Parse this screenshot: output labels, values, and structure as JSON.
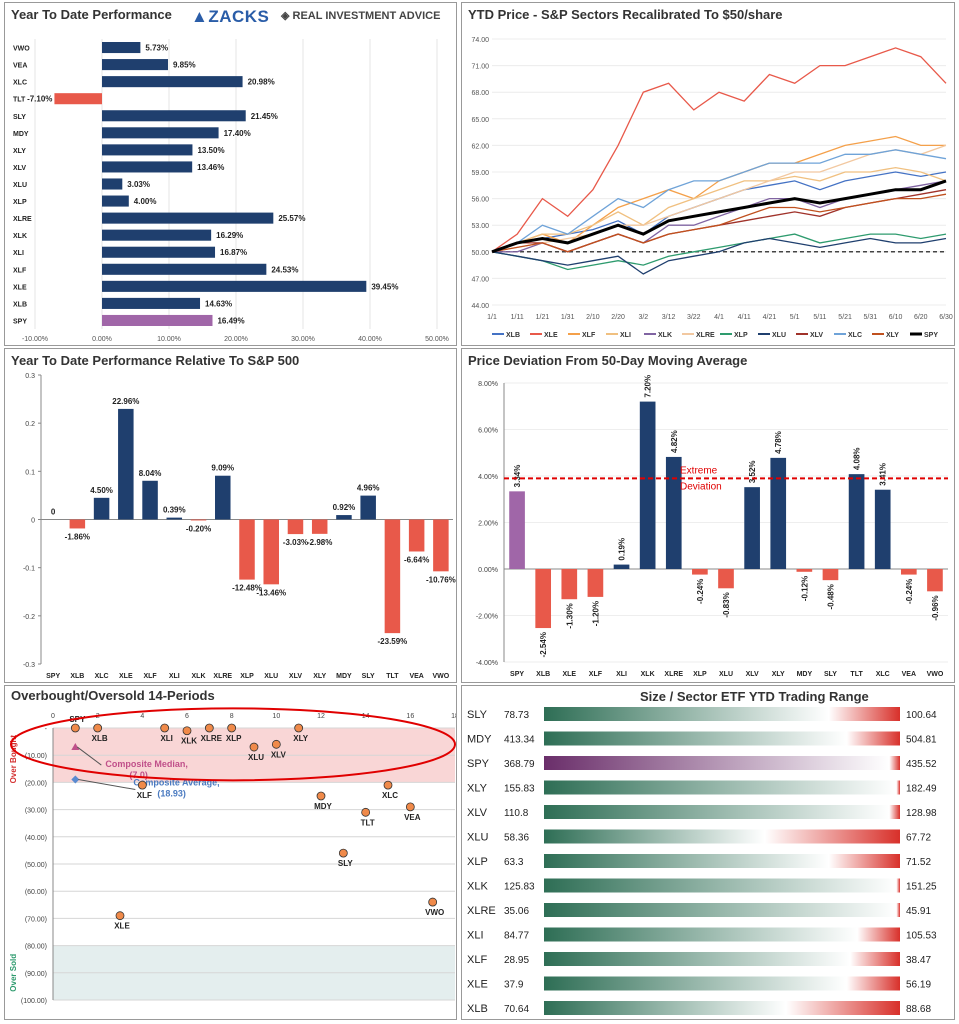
{
  "chart_data": [
    {
      "type": "bar",
      "orientation": "horizontal",
      "title": "Year To Date Performance",
      "categories": [
        "VWO",
        "VEA",
        "XLC",
        "TLT",
        "SLY",
        "MDY",
        "XLY",
        "XLV",
        "XLU",
        "XLP",
        "XLRE",
        "XLK",
        "XLI",
        "XLF",
        "XLE",
        "XLB",
        "SPY"
      ],
      "values": [
        5.73,
        9.85,
        20.98,
        -7.1,
        21.45,
        17.4,
        13.5,
        13.46,
        3.03,
        4.0,
        25.57,
        16.29,
        16.87,
        24.53,
        39.45,
        14.63,
        16.49
      ],
      "labels": [
        "5.73%",
        "9.85%",
        "20.98%",
        "-7.10%",
        "21.45%",
        "17.40%",
        "13.50%",
        "13.46%",
        "3.03%",
        "4.00%",
        "25.57%",
        "16.29%",
        "16.87%",
        "24.53%",
        "39.45%",
        "14.63%",
        "16.49%"
      ],
      "xticks": [
        "-10.00%",
        "0.00%",
        "10.00%",
        "20.00%",
        "30.00%",
        "40.00%",
        "50.00%"
      ],
      "xlim": [
        -10,
        50
      ],
      "colors": {
        "positive": "#1f3f6e",
        "negative": "#e8594a",
        "spy": "#a066a8"
      }
    },
    {
      "type": "line",
      "title": "YTD Price - S&P Sectors Recalibrated To $50/share",
      "xticks": [
        "1/1",
        "1/11",
        "1/21",
        "1/31",
        "2/10",
        "2/20",
        "3/2",
        "3/12",
        "3/22",
        "4/1",
        "4/11",
        "4/21",
        "5/1",
        "5/11",
        "5/21",
        "5/31",
        "6/10",
        "6/20",
        "6/30"
      ],
      "yticks": [
        "44.00",
        "47.00",
        "50.00",
        "53.00",
        "56.00",
        "59.00",
        "62.00",
        "65.00",
        "68.00",
        "71.00",
        "74.00"
      ],
      "ylim": [
        44,
        74
      ],
      "baseline": 50,
      "series": [
        {
          "name": "XLB",
          "color": "#4472c4",
          "values": [
            50,
            51,
            51.5,
            52,
            52.5,
            53.5,
            52,
            54,
            55,
            56,
            57,
            57.5,
            58,
            57,
            58,
            58.5,
            59,
            58.5,
            59
          ]
        },
        {
          "name": "XLE",
          "color": "#e8594a",
          "values": [
            50,
            52,
            56,
            54,
            57,
            62,
            68,
            69,
            66,
            68,
            67,
            70,
            69,
            71,
            71,
            72,
            73,
            72,
            69
          ]
        },
        {
          "name": "XLF",
          "color": "#f4a04a",
          "values": [
            50,
            51,
            52,
            51,
            53,
            55,
            56,
            57,
            56,
            58,
            59,
            60,
            60,
            61,
            62,
            62.5,
            63,
            62,
            62
          ]
        },
        {
          "name": "XLI",
          "color": "#f0c080",
          "values": [
            50,
            51,
            52,
            52,
            53,
            54.5,
            53,
            55,
            56,
            57,
            58,
            58,
            58.5,
            58,
            59,
            59,
            59.5,
            59,
            58
          ]
        },
        {
          "name": "XLK",
          "color": "#8064a2",
          "values": [
            50,
            50,
            51,
            50,
            51,
            52,
            51,
            53,
            53,
            54,
            55,
            56,
            56,
            55,
            56,
            56.5,
            57,
            57.5,
            58
          ]
        },
        {
          "name": "XLRE",
          "color": "#f2c8a0",
          "values": [
            50,
            50.5,
            51,
            51.5,
            52,
            53,
            53,
            54,
            55,
            56,
            57,
            58,
            59,
            59,
            60,
            61,
            61.5,
            61,
            62
          ]
        },
        {
          "name": "XLP",
          "color": "#2e9b6e",
          "values": [
            50,
            49.5,
            49,
            48,
            48.5,
            49,
            48.5,
            49.5,
            50,
            50.5,
            51,
            51.5,
            52,
            51,
            51.5,
            52,
            52,
            51.5,
            52
          ]
        },
        {
          "name": "XLU",
          "color": "#1f3f6e",
          "values": [
            50,
            49.5,
            49,
            48.5,
            49,
            49.5,
            47.5,
            49,
            49.5,
            50,
            51,
            51.5,
            51,
            50.5,
            51,
            51.5,
            51,
            51,
            51.5
          ]
        },
        {
          "name": "XLV",
          "color": "#a0322a",
          "values": [
            50,
            51,
            51,
            50,
            51,
            52,
            51,
            52,
            52.5,
            53,
            53.5,
            54,
            54.5,
            54,
            55,
            55.5,
            56,
            56.5,
            57
          ]
        },
        {
          "name": "XLC",
          "color": "#6fa3d8",
          "values": [
            50,
            51,
            53,
            52,
            54,
            56,
            55,
            57,
            58,
            58,
            59,
            60,
            60,
            60,
            61,
            61,
            61.5,
            61,
            60.5
          ]
        },
        {
          "name": "XLY",
          "color": "#c0501e",
          "values": [
            50,
            50.5,
            51,
            50,
            51,
            52,
            51,
            52,
            52.5,
            53,
            54,
            55,
            55,
            54.5,
            55,
            55.5,
            56,
            56,
            56.5
          ]
        },
        {
          "name": "SPY",
          "color": "#000000",
          "values": [
            50,
            51,
            51.5,
            51,
            52,
            53,
            52,
            53.5,
            54,
            54.5,
            55,
            55.5,
            56,
            55.5,
            56,
            56.5,
            57,
            57,
            58
          ]
        }
      ]
    },
    {
      "type": "bar",
      "title": "Year To Date Performance Relative To S&P 500",
      "categories": [
        "SPY",
        "XLB",
        "XLC",
        "XLE",
        "XLF",
        "XLI",
        "XLK",
        "XLRE",
        "XLP",
        "XLU",
        "XLV",
        "XLY",
        "MDY",
        "SLY",
        "TLT",
        "VEA",
        "VWO"
      ],
      "values": [
        0,
        -0.0186,
        0.045,
        0.2296,
        0.0804,
        0.0039,
        -0.002,
        0.0909,
        -0.1248,
        -0.1346,
        -0.0303,
        -0.0298,
        0.0092,
        0.0496,
        -0.2359,
        -0.0664,
        -0.1076
      ],
      "labels": [
        "0",
        "-1.86%",
        "4.50%",
        "22.96%",
        "8.04%",
        "0.39%",
        "-0.20%",
        "9.09%",
        "-12.48%",
        "-13.46%",
        "-3.03%",
        "-2.98%",
        "0.92%",
        "4.96%",
        "-23.59%",
        "-6.64%",
        "-10.76%"
      ],
      "yticks": [
        "0.3",
        "0.2",
        "0.1",
        "0",
        "-0.1",
        "-0.2",
        "-0.3"
      ],
      "ylim": [
        -0.3,
        0.3
      ],
      "colors": {
        "positive": "#1f3f6e",
        "negative": "#e8594a"
      }
    },
    {
      "type": "bar",
      "title": "Price Deviation From 50-Day Moving Average",
      "categories": [
        "SPY",
        "XLB",
        "XLE",
        "XLF",
        "XLI",
        "XLK",
        "XLRE",
        "XLP",
        "XLU",
        "XLV",
        "XLY",
        "MDY",
        "SLY",
        "TLT",
        "XLC",
        "VEA",
        "VWO"
      ],
      "values": [
        3.34,
        -2.54,
        -1.3,
        -1.2,
        0.19,
        7.2,
        4.82,
        -0.24,
        -0.83,
        3.52,
        4.78,
        -0.12,
        -0.48,
        4.08,
        3.41,
        -0.24,
        -0.96
      ],
      "labels": [
        "3.34%",
        "-2.54%",
        "-1.30%",
        "-1.20%",
        "0.19%",
        "7.20%",
        "4.82%",
        "-0.24%",
        "-0.83%",
        "3.52%",
        "4.78%",
        "-0.12%",
        "-0.48%",
        "4.08%",
        "3.41%",
        "-0.24%",
        "-0.96%"
      ],
      "yticks": [
        "8.00%",
        "6.00%",
        "4.00%",
        "2.00%",
        "0.00%",
        "-2.00%",
        "-4.00%"
      ],
      "ylim": [
        -4,
        8
      ],
      "threshold": 3.9,
      "threshold_label_1": "Extreme",
      "threshold_label_2": "Deviation",
      "colors": {
        "positive": "#1f3f6e",
        "negative": "#e8594a",
        "spy": "#a066a8"
      }
    },
    {
      "type": "scatter",
      "title": "Overbought/Oversold 14-Periods",
      "xticks": [
        "0",
        "2",
        "4",
        "6",
        "8",
        "10",
        "12",
        "14",
        "16",
        "18"
      ],
      "yticks": [
        "-",
        "(10.00)",
        "(20.00)",
        "(30.00)",
        "(40.00)",
        "(50.00)",
        "(60.00)",
        "(70.00)",
        "(80.00)",
        "(90.00)",
        "(100.00)"
      ],
      "xlim": [
        0,
        18
      ],
      "ylim": [
        -100,
        0
      ],
      "zone_top_label": "Over Bought",
      "zone_bottom_label": "Over Sold",
      "points": [
        {
          "name": "SPY",
          "x": 1,
          "y": 0
        },
        {
          "name": "XLB",
          "x": 2,
          "y": 0
        },
        {
          "name": "XLI",
          "x": 5,
          "y": 0
        },
        {
          "name": "XLK",
          "x": 6,
          "y": -1
        },
        {
          "name": "XLRE",
          "x": 7,
          "y": 0
        },
        {
          "name": "XLP",
          "x": 8,
          "y": 0
        },
        {
          "name": "XLU",
          "x": 9,
          "y": -7
        },
        {
          "name": "XLV",
          "x": 10,
          "y": -6
        },
        {
          "name": "XLY",
          "x": 11,
          "y": 0
        },
        {
          "name": "XLF",
          "x": 4,
          "y": -21
        },
        {
          "name": "MDY",
          "x": 12,
          "y": -25
        },
        {
          "name": "TLT",
          "x": 14,
          "y": -31
        },
        {
          "name": "XLC",
          "x": 15,
          "y": -21
        },
        {
          "name": "VEA",
          "x": 16,
          "y": -29
        },
        {
          "name": "SLY",
          "x": 13,
          "y": -46
        },
        {
          "name": "VWO",
          "x": 17,
          "y": -64
        },
        {
          "name": "XLE",
          "x": 3,
          "y": -69
        }
      ],
      "median": {
        "label_1": "Composite Median,",
        "label_2": "(7.0)",
        "x": 1,
        "y": -7
      },
      "average": {
        "label_1": "Composite Average,",
        "label_2": "(18.93)",
        "x": 1,
        "y": -18.93
      }
    },
    {
      "type": "table",
      "title": "Size / Sector ETF YTD Trading Range",
      "rows": [
        {
          "name": "SLY",
          "low": "78.73",
          "high": "100.64",
          "position": 0.8,
          "color": "#2e6e55"
        },
        {
          "name": "MDY",
          "low": "413.34",
          "high": "504.81",
          "position": 0.85,
          "color": "#2e6e55"
        },
        {
          "name": "SPY",
          "low": "368.79",
          "high": "435.52",
          "position": 0.97,
          "color": "#6a2e6a"
        },
        {
          "name": "XLY",
          "low": "155.83",
          "high": "182.49",
          "position": 0.99,
          "color": "#2e6e55"
        },
        {
          "name": "XLV",
          "low": "110.8",
          "high": "128.98",
          "position": 0.97,
          "color": "#2e6e55"
        },
        {
          "name": "XLU",
          "low": "58.36",
          "high": "67.72",
          "position": 0.62,
          "color": "#2e6e55"
        },
        {
          "name": "XLP",
          "low": "63.3",
          "high": "71.52",
          "position": 0.8,
          "color": "#2e6e55"
        },
        {
          "name": "XLK",
          "low": "125.83",
          "high": "151.25",
          "position": 0.99,
          "color": "#2e6e55"
        },
        {
          "name": "XLRE",
          "low": "35.06",
          "high": "45.91",
          "position": 0.99,
          "color": "#2e6e55"
        },
        {
          "name": "XLI",
          "low": "84.77",
          "high": "105.53",
          "position": 0.88,
          "color": "#2e6e55"
        },
        {
          "name": "XLF",
          "low": "28.95",
          "high": "38.47",
          "position": 0.86,
          "color": "#2e6e55"
        },
        {
          "name": "XLE",
          "low": "37.9",
          "high": "56.19",
          "position": 0.85,
          "color": "#2e6e55"
        },
        {
          "name": "XLB",
          "low": "70.64",
          "high": "88.68",
          "position": 0.68,
          "color": "#2e6e55"
        }
      ]
    }
  ],
  "logos": {
    "zacks": "ZACKS",
    "ria": "REAL INVESTMENT ADVICE"
  }
}
